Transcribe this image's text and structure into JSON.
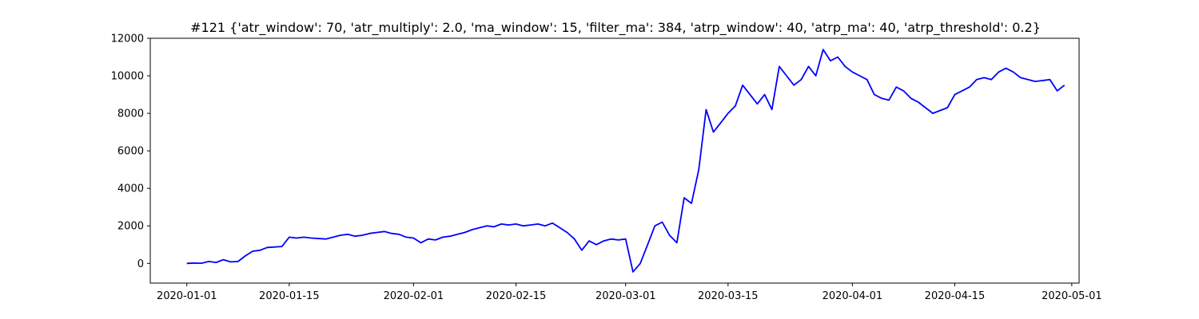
{
  "chart_data": {
    "type": "line",
    "title": "#121 {'atr_window': 70, 'atr_multiply': 2.0, 'ma_window': 15, 'filter_ma': 384, 'atrp_window': 40, 'atrp_ma': 40, 'atrp_threshold': 0.2}",
    "xlabel": "",
    "ylabel": "",
    "x_type": "date",
    "xlim": [
      "2019-12-27",
      "2020-05-02"
    ],
    "ylim": [
      -1050,
      12000
    ],
    "grid": false,
    "color": "#0000ff",
    "x_ticks": [
      "2020-01-01",
      "2020-01-15",
      "2020-02-01",
      "2020-02-15",
      "2020-03-01",
      "2020-03-15",
      "2020-04-01",
      "2020-04-15",
      "2020-05-01"
    ],
    "y_ticks": [
      0,
      2000,
      4000,
      6000,
      8000,
      10000,
      12000
    ],
    "x_tick_labels": [
      "2020-01-01",
      "2020-01-15",
      "2020-02-01",
      "2020-02-15",
      "2020-03-01",
      "2020-03-15",
      "2020-04-01",
      "2020-04-15",
      "2020-05-01"
    ],
    "y_tick_labels": [
      "0",
      "2000",
      "4000",
      "6000",
      "8000",
      "10000",
      "12000"
    ],
    "series": [
      {
        "x": [
          "2020-01-01",
          "2020-01-02",
          "2020-01-03",
          "2020-01-04",
          "2020-01-05",
          "2020-01-06",
          "2020-01-07",
          "2020-01-08",
          "2020-01-09",
          "2020-01-10",
          "2020-01-11",
          "2020-01-12",
          "2020-01-14",
          "2020-01-15",
          "2020-01-16",
          "2020-01-17",
          "2020-01-18",
          "2020-01-20",
          "2020-01-21",
          "2020-01-22",
          "2020-01-23",
          "2020-01-24",
          "2020-01-25",
          "2020-01-26",
          "2020-01-27",
          "2020-01-28",
          "2020-01-29",
          "2020-01-30",
          "2020-01-31",
          "2020-02-01",
          "2020-02-02",
          "2020-02-03",
          "2020-02-04",
          "2020-02-05",
          "2020-02-06",
          "2020-02-07",
          "2020-02-08",
          "2020-02-09",
          "2020-02-10",
          "2020-02-11",
          "2020-02-12",
          "2020-02-13",
          "2020-02-14",
          "2020-02-15",
          "2020-02-16",
          "2020-02-17",
          "2020-02-18",
          "2020-02-19",
          "2020-02-20",
          "2020-02-21",
          "2020-02-22",
          "2020-02-23",
          "2020-02-24",
          "2020-02-25",
          "2020-02-26",
          "2020-02-27",
          "2020-02-28",
          "2020-02-29",
          "2020-03-01",
          "2020-03-02",
          "2020-03-03",
          "2020-03-04",
          "2020-03-05",
          "2020-03-06",
          "2020-03-07",
          "2020-03-08",
          "2020-03-09",
          "2020-03-10",
          "2020-03-11",
          "2020-03-12",
          "2020-03-13",
          "2020-03-14",
          "2020-03-15",
          "2020-03-16",
          "2020-03-17",
          "2020-03-18",
          "2020-03-19",
          "2020-03-20",
          "2020-03-21",
          "2020-03-22",
          "2020-03-23",
          "2020-03-24",
          "2020-03-25",
          "2020-03-26",
          "2020-03-27",
          "2020-03-28",
          "2020-03-29",
          "2020-03-30",
          "2020-03-31",
          "2020-04-01",
          "2020-04-02",
          "2020-04-03",
          "2020-04-04",
          "2020-04-05",
          "2020-04-06",
          "2020-04-07",
          "2020-04-08",
          "2020-04-09",
          "2020-04-10",
          "2020-04-12",
          "2020-04-14",
          "2020-04-15",
          "2020-04-16",
          "2020-04-17",
          "2020-04-18",
          "2020-04-19",
          "2020-04-20",
          "2020-04-21",
          "2020-04-22",
          "2020-04-23",
          "2020-04-24",
          "2020-04-26",
          "2020-04-28",
          "2020-04-29",
          "2020-04-30"
        ],
        "y": [
          0,
          20,
          10,
          100,
          50,
          200,
          80,
          100,
          400,
          650,
          700,
          850,
          900,
          1400,
          1350,
          1400,
          1350,
          1300,
          1400,
          1500,
          1550,
          1450,
          1500,
          1600,
          1650,
          1700,
          1600,
          1550,
          1400,
          1350,
          1100,
          1300,
          1250,
          1400,
          1450,
          1550,
          1650,
          1800,
          1900,
          2000,
          1950,
          2100,
          2050,
          2100,
          2000,
          2050,
          2100,
          2000,
          2150,
          1900,
          1650,
          1300,
          700,
          1200,
          1000,
          1200,
          1300,
          1250,
          1300,
          -450,
          0,
          1000,
          2000,
          2200,
          1500,
          1100,
          3500,
          3200,
          5000,
          8200,
          7000,
          7500,
          8000,
          8400,
          9500,
          9000,
          8500,
          9000,
          8200,
          10500,
          10000,
          9500,
          9800,
          10500,
          10000,
          11400,
          10800,
          11000,
          10500,
          10200,
          10000,
          9800,
          9000,
          8800,
          8700,
          9400,
          9200,
          8800,
          8600,
          8000,
          8300,
          9000,
          9200,
          9400,
          9800,
          9900,
          9800,
          10200,
          10400,
          10200,
          9900,
          9700,
          9800,
          9200,
          9500
        ]
      }
    ]
  }
}
